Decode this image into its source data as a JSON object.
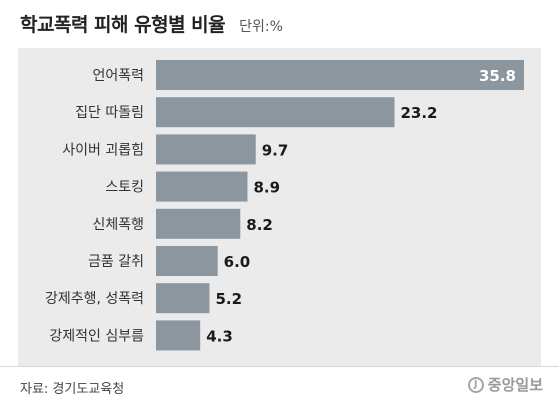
{
  "header": {
    "title": "학교폭력 피해 유형별 비율",
    "unit": "단위:%"
  },
  "source": "자료: 경기도교육청",
  "logo": {
    "mark": "J",
    "text": "중앙일보"
  },
  "colors": {
    "bar": "#8b969f",
    "panel": "#ebebeb",
    "label_text": "#333333",
    "value_text": "#1a1a1a",
    "value_text_inside": "#ffffff"
  },
  "chart_data": {
    "type": "bar",
    "orientation": "horizontal",
    "title": "학교폭력 피해 유형별 비율",
    "unit": "단위:%",
    "categories": [
      "언어폭력",
      "집단 따돌림",
      "사이버 괴롭힘",
      "스토킹",
      "신체폭행",
      "금품 갈취",
      "강제추행, 성폭력",
      "강제적인 심부름"
    ],
    "values": [
      35.8,
      23.2,
      9.7,
      8.9,
      8.2,
      6.0,
      5.2,
      4.3
    ],
    "value_labels": [
      "35.8",
      "23.2",
      "9.7",
      "8.9",
      "8.2",
      "6.0",
      "5.2",
      "4.3"
    ],
    "xlim": [
      0,
      35.8
    ],
    "grid": false
  }
}
